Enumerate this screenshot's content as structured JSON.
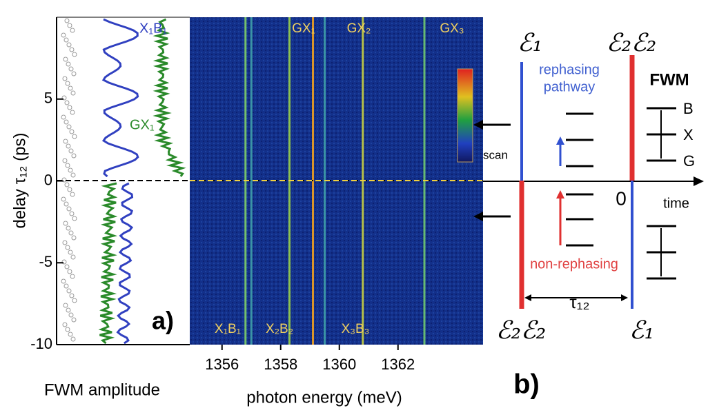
{
  "panel_a": {
    "y_label": "delay τ₁₂ (ps)",
    "ylim": [
      -10,
      10
    ],
    "yticks": [
      -10,
      -5,
      0,
      5
    ],
    "left_x_label": "FWM amplitude",
    "x_label": "photon energy (meV)",
    "xlim": [
      1354.9,
      1364.9
    ],
    "xticks": [
      1356,
      1358,
      1360,
      1362
    ],
    "panel_label": "a)",
    "curve_labels": [
      "X₁B₁",
      "GX₁"
    ],
    "top_labels": [
      "GX₁",
      "GX₂",
      "GX₃"
    ],
    "bottom_labels": [
      "X₁B₁",
      "X₂B₂",
      "X₃B₃"
    ],
    "lines": [
      {
        "energy": 1356.8,
        "color": "#7fd06a"
      },
      {
        "energy": 1357.0,
        "color": "#3f9ea8"
      },
      {
        "energy": 1358.3,
        "color": "#9ad04a"
      },
      {
        "energy": 1359.1,
        "color": "#f0a020"
      },
      {
        "energy": 1359.5,
        "color": "#3f9ea8"
      },
      {
        "energy": 1360.8,
        "color": "#c8d040"
      },
      {
        "energy": 1362.9,
        "color": "#70c870"
      }
    ]
  },
  "panel_b": {
    "pulse_labels_top": [
      "ℰ₁",
      "ℰ₂ℰ₂"
    ],
    "pulse_labels_bottom": [
      "ℰ₂ℰ₂",
      "ℰ₁"
    ],
    "rephasing": [
      "rephasing",
      "pathway"
    ],
    "fwm": "FWM",
    "levels": [
      "B",
      "X",
      "G"
    ],
    "scan": "scan",
    "zero": "0",
    "time": "time",
    "non_rephasing": "non-rephasing",
    "delay": "τ₁₂",
    "panel_label": "b)"
  }
}
